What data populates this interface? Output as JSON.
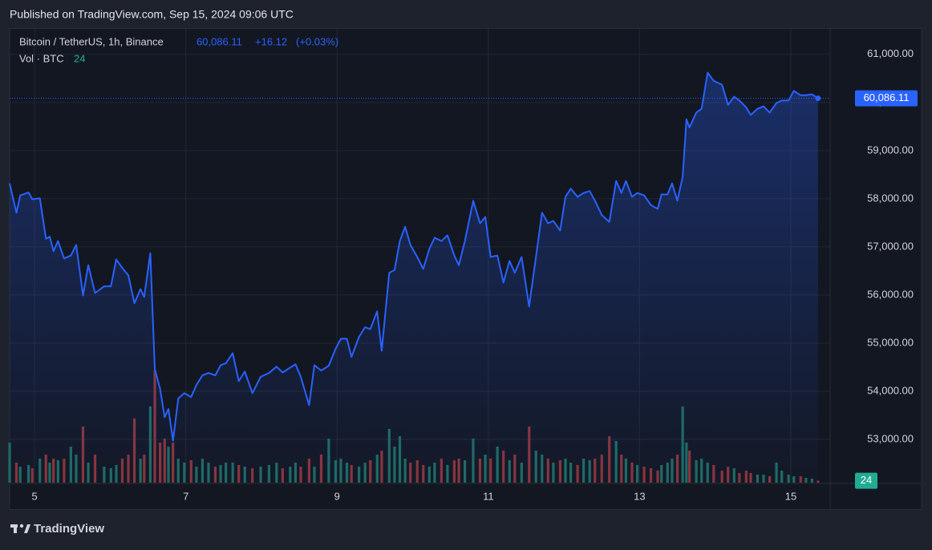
{
  "published": "Published on TradingView.com, Sep 15, 2024 09:06 UTC",
  "brand": "TradingView",
  "chart_data": {
    "type": "area",
    "symbol": "Bitcoin / TetherUS, 1h, Binance",
    "price_label": "60,086.11",
    "change": "+16.12",
    "change_pct": "(+0.03%)",
    "volume_title": "Vol · BTC",
    "x": [
      4.67,
      4.76,
      4.81,
      4.92,
      4.97,
      5.07,
      5.15,
      5.2,
      5.25,
      5.31,
      5.39,
      5.48,
      5.55,
      5.64,
      5.71,
      5.8,
      5.92,
      6.01,
      6.08,
      6.16,
      6.24,
      6.32,
      6.4,
      6.45,
      6.53,
      6.59,
      6.66,
      6.72,
      6.77,
      6.83,
      6.9,
      6.98,
      7.07,
      7.14,
      7.22,
      7.3,
      7.39,
      7.46,
      7.53,
      7.62,
      7.7,
      7.78,
      7.88,
      7.99,
      8.1,
      8.2,
      8.28,
      8.38,
      8.45,
      8.52,
      8.63,
      8.7,
      8.79,
      8.89,
      8.98,
      9.05,
      9.13,
      9.19,
      9.29,
      9.37,
      9.44,
      9.53,
      9.59,
      9.69,
      9.76,
      9.83,
      9.9,
      9.97,
      10.06,
      10.14,
      10.22,
      10.29,
      10.38,
      10.46,
      10.55,
      10.61,
      10.69,
      10.8,
      10.89,
      10.96,
      11.03,
      11.12,
      11.2,
      11.28,
      11.35,
      11.44,
      11.54,
      11.63,
      11.71,
      11.79,
      11.86,
      11.95,
      12.02,
      12.09,
      12.18,
      12.26,
      12.34,
      12.41,
      12.5,
      12.6,
      12.69,
      12.76,
      12.82,
      12.9,
      12.97,
      13.06,
      13.15,
      13.24,
      13.29,
      13.37,
      13.43,
      13.5,
      13.57,
      13.62,
      13.66,
      13.75,
      13.82,
      13.9,
      13.98,
      14.09,
      14.17,
      14.25,
      14.32,
      14.41,
      14.47,
      14.56,
      14.64,
      14.72,
      14.81,
      14.88,
      14.97,
      15.04,
      15.13,
      15.2,
      15.28,
      15.36
    ],
    "series": [
      {
        "color": "#2962ff",
        "values": [
          58320,
          57710,
          58070,
          58130,
          57990,
          58010,
          57170,
          57210,
          56910,
          57120,
          56760,
          56820,
          57040,
          55990,
          56620,
          56040,
          56180,
          56180,
          56740,
          56560,
          56410,
          55830,
          56120,
          55960,
          56870,
          54460,
          54050,
          53460,
          53630,
          52970,
          53850,
          53960,
          53880,
          54130,
          54330,
          54380,
          54330,
          54540,
          54580,
          54790,
          54210,
          54410,
          53960,
          54300,
          54380,
          54510,
          54390,
          54490,
          54560,
          54300,
          53710,
          54540,
          54430,
          54530,
          54880,
          55090,
          55090,
          54710,
          55130,
          55330,
          55290,
          55660,
          54840,
          56460,
          56520,
          57120,
          57420,
          57040,
          56790,
          56540,
          56960,
          57190,
          57120,
          57240,
          56820,
          56620,
          57120,
          57960,
          57490,
          57620,
          56790,
          56820,
          56260,
          56710,
          56460,
          56790,
          55760,
          56790,
          57710,
          57490,
          57540,
          57340,
          58040,
          58210,
          58040,
          58120,
          58160,
          57960,
          57660,
          57520,
          58370,
          58120,
          58370,
          58040,
          58120,
          58070,
          57870,
          57790,
          58090,
          58090,
          58320,
          57960,
          58450,
          59650,
          59480,
          59790,
          59870,
          60620,
          60450,
          60370,
          59950,
          60120,
          60040,
          59900,
          59740,
          59870,
          59920,
          59790,
          59990,
          60040,
          60040,
          60240,
          60150,
          60150,
          60170,
          60086.11
        ]
      },
      {
        "axis": "y2",
        "up_color": "#1e6b62",
        "down_color": "#8a3439",
        "values": [
          500,
          250,
          200,
          220,
          180,
          300,
          350,
          250,
          300,
          280,
          300,
          450,
          350,
          700,
          250,
          350,
          200,
          180,
          220,
          300,
          350,
          800,
          300,
          350,
          950,
          1400,
          500,
          550,
          450,
          500,
          300,
          250,
          280,
          200,
          300,
          250,
          200,
          220,
          250,
          250,
          220,
          200,
          180,
          200,
          220,
          250,
          180,
          200,
          250,
          200,
          300,
          200,
          350,
          550,
          280,
          300,
          250,
          220,
          200,
          250,
          280,
          350,
          400,
          670,
          450,
          580,
          300,
          250,
          280,
          220,
          200,
          250,
          300,
          220,
          280,
          300,
          280,
          550,
          300,
          350,
          300,
          450,
          400,
          280,
          350,
          250,
          700,
          400,
          350,
          300,
          250,
          280,
          300,
          250,
          220,
          300,
          280,
          300,
          350,
          580,
          520,
          350,
          300,
          250,
          220,
          200,
          180,
          150,
          220,
          250,
          300,
          350,
          950,
          500,
          400,
          280,
          300,
          250,
          220,
          150,
          200,
          180,
          120,
          150,
          120,
          100,
          100,
          80,
          250,
          150,
          100,
          80,
          80,
          60,
          50,
          24
        ]
      }
    ],
    "xlim": [
      4.67,
      15.52
    ],
    "xticks": [
      5,
      7,
      9,
      11,
      13,
      15
    ],
    "ylim": [
      52100,
      61530
    ],
    "yticks": [
      {
        "value": 53000,
        "label": "53,000.00"
      },
      {
        "value": 54000,
        "label": "54,000.00"
      },
      {
        "value": 55000,
        "label": "55,000.00"
      },
      {
        "value": 56000,
        "label": "56,000.00"
      },
      {
        "value": 57000,
        "label": "57,000.00"
      },
      {
        "value": 58000,
        "label": "58,000.00"
      },
      {
        "value": 59000,
        "label": "59,000.00"
      },
      {
        "value": 60000,
        "label": "60,000.00"
      },
      {
        "value": 61000,
        "label": "61,000.00"
      }
    ],
    "y2lim": [
      0,
      1500
    ],
    "grid": true
  }
}
